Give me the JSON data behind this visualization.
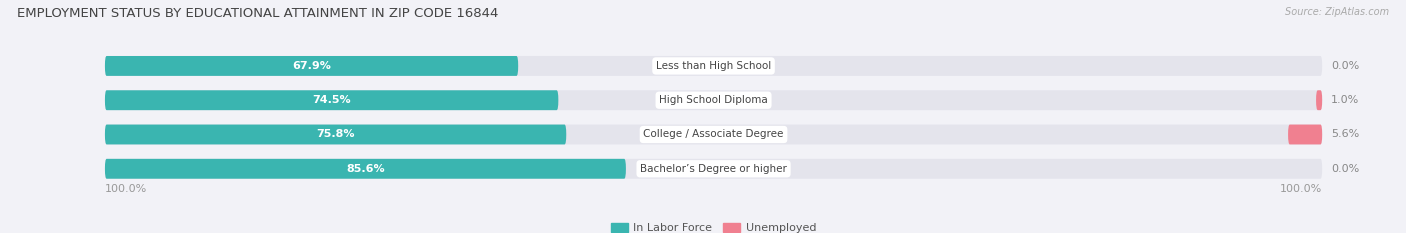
{
  "title": "EMPLOYMENT STATUS BY EDUCATIONAL ATTAINMENT IN ZIP CODE 16844",
  "source": "Source: ZipAtlas.com",
  "categories": [
    "Less than High School",
    "High School Diploma",
    "College / Associate Degree",
    "Bachelor’s Degree or higher"
  ],
  "labor_force": [
    67.9,
    74.5,
    75.8,
    85.6
  ],
  "unemployed": [
    0.0,
    1.0,
    5.6,
    0.0
  ],
  "labor_force_color": "#3ab5b0",
  "unemployed_color": "#f08090",
  "bg_color": "#f2f2f7",
  "bar_bg_color": "#e4e4ec",
  "axis_label_left": "100.0%",
  "axis_label_right": "100.0%",
  "legend_labor": "In Labor Force",
  "legend_unemployed": "Unemployed",
  "title_fontsize": 9.5,
  "label_fontsize": 8,
  "cat_fontsize": 7.5,
  "bar_height": 0.58
}
